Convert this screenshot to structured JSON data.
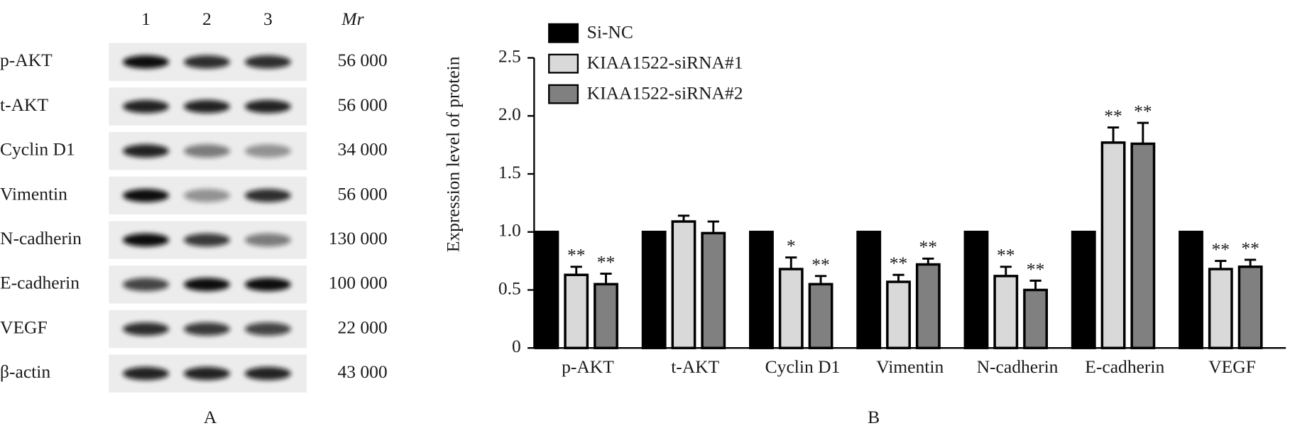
{
  "blot": {
    "panel_label": "A",
    "lanes": [
      "1",
      "2",
      "3"
    ],
    "mr_header": "Mr",
    "rows": [
      {
        "protein": "p-AKT",
        "mr": "56 000"
      },
      {
        "protein": "t-AKT",
        "mr": "56 000"
      },
      {
        "protein": "Cyclin D1",
        "mr": "34 000"
      },
      {
        "protein": "Vimentin",
        "mr": "56 000"
      },
      {
        "protein": "N-cadherin",
        "mr": "130 000"
      },
      {
        "protein": "E-cadherin",
        "mr": "100 000"
      },
      {
        "protein": "VEGF",
        "mr": "22 000"
      },
      {
        "protein": "β-actin",
        "mr": "43 000"
      }
    ]
  },
  "chart_data": {
    "type": "bar",
    "panel_label": "B",
    "y_label": "Expression level of protein",
    "categories": [
      "p-AKT",
      "t-AKT",
      "Cyclin D1",
      "Vimentin",
      "N-cadherin",
      "E-cadherin",
      "VEGF"
    ],
    "series": [
      {
        "name": "Si-NC",
        "color": "#000000",
        "values": [
          1,
          1,
          1,
          1,
          1,
          1,
          1
        ]
      },
      {
        "name": "KIAA1522-siRNA#1",
        "color": "#d9d9d9",
        "values": [
          0.63,
          1.09,
          0.68,
          0.57,
          0.62,
          1.77,
          0.68
        ],
        "errors": [
          0.07,
          0.05,
          0.1,
          0.06,
          0.08,
          0.13,
          0.07
        ],
        "significance": [
          "**",
          null,
          "*",
          "**",
          "**",
          "**",
          "**"
        ]
      },
      {
        "name": "KIAA1522-siRNA#2",
        "color": "#808080",
        "values": [
          0.55,
          0.99,
          0.55,
          0.72,
          0.5,
          1.76,
          0.7
        ],
        "errors": [
          0.09,
          0.1,
          0.07,
          0.05,
          0.08,
          0.18,
          0.06
        ],
        "significance": [
          "**",
          null,
          "**",
          "**",
          "**",
          "**",
          "**"
        ]
      }
    ],
    "ylim": [
      0,
      2.5
    ],
    "yticks": [
      0,
      0.5,
      {
        "value": 1,
        "label": "1.0"
      },
      1.5,
      {
        "value": 2,
        "label": "2.0"
      },
      2.5
    ],
    "legend": "top-left"
  }
}
